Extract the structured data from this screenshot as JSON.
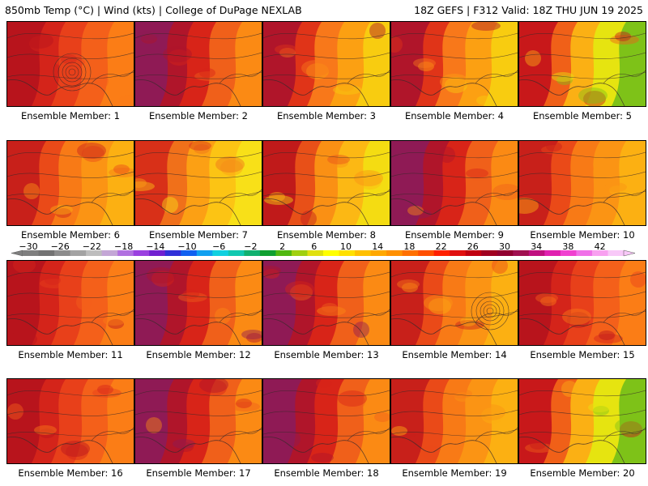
{
  "header": {
    "left": "850mb Temp (°C) | Wind (kts) | College of DuPage NEXLAB",
    "right": "18Z GEFS | F312 Valid: 18Z THU JUN 19 2025"
  },
  "caption_prefix": "Ensemble Member:",
  "members": [
    {
      "label": "Ensemble Member: 1",
      "scheme": "red-west",
      "closed_low": true
    },
    {
      "label": "Ensemble Member: 2",
      "scheme": "hot-west",
      "closed_low": false
    },
    {
      "label": "Ensemble Member: 3",
      "scheme": "yellow-east",
      "closed_low": false
    },
    {
      "label": "Ensemble Member: 4",
      "scheme": "yellow-east",
      "closed_low": false
    },
    {
      "label": "Ensemble Member: 5",
      "scheme": "green-ne",
      "closed_low": false
    },
    {
      "label": "Ensemble Member: 6",
      "scheme": "orange",
      "closed_low": false
    },
    {
      "label": "Ensemble Member: 7",
      "scheme": "yellow",
      "closed_low": false
    },
    {
      "label": "Ensemble Member: 8",
      "scheme": "orange-yel",
      "closed_low": false
    },
    {
      "label": "Ensemble Member: 9",
      "scheme": "hot-west",
      "closed_low": false
    },
    {
      "label": "Ensemble Member: 10",
      "scheme": "orange",
      "closed_low": false
    },
    {
      "label": "Ensemble Member: 11",
      "scheme": "red-west",
      "closed_low": false
    },
    {
      "label": "Ensemble Member: 12",
      "scheme": "hot-west",
      "closed_low": false
    },
    {
      "label": "Ensemble Member: 13",
      "scheme": "hot-west",
      "closed_low": false
    },
    {
      "label": "Ensemble Member: 14",
      "scheme": "orange",
      "closed_low": true
    },
    {
      "label": "Ensemble Member: 15",
      "scheme": "red-west",
      "closed_low": false
    },
    {
      "label": "Ensemble Member: 16",
      "scheme": "red-west",
      "closed_low": false
    },
    {
      "label": "Ensemble Member: 17",
      "scheme": "hot-west",
      "closed_low": false
    },
    {
      "label": "Ensemble Member: 18",
      "scheme": "hot-west",
      "closed_low": false
    },
    {
      "label": "Ensemble Member: 19",
      "scheme": "orange",
      "closed_low": false
    },
    {
      "label": "Ensemble Member: 20",
      "scheme": "green-ne",
      "closed_low": false
    }
  ],
  "colorbar": {
    "labels": [
      "−30",
      "−26",
      "−22",
      "−18",
      "−14",
      "−10",
      "−6",
      "−2",
      "2",
      "6",
      "10",
      "14",
      "18",
      "22",
      "26",
      "30",
      "34",
      "38",
      "42"
    ],
    "colors": [
      "#7f7f7f",
      "#737373",
      "#8c8c8c",
      "#a3a3a3",
      "#bdbdbd",
      "#c3a6d6",
      "#b070e0",
      "#9a40e0",
      "#7020d0",
      "#3030d8",
      "#1060f0",
      "#10a0f0",
      "#10d0e0",
      "#10c8b0",
      "#10b070",
      "#10a030",
      "#50b810",
      "#a0d010",
      "#e0e010",
      "#ffff00",
      "#ffe000",
      "#ffc000",
      "#ffa800",
      "#ff9000",
      "#ff7000",
      "#ff5000",
      "#ff2000",
      "#e01010",
      "#c00010",
      "#a00020",
      "#900030",
      "#a01050",
      "#c01080",
      "#e020b0",
      "#f040d0",
      "#f070e8",
      "#f8a0f0",
      "#f8c8f8"
    ]
  },
  "palettes": {
    "red-west": [
      "#b8141c",
      "#d4241a",
      "#e8401a",
      "#f4601a",
      "#fb7d16"
    ],
    "hot-west": [
      "#8f1a55",
      "#b0152a",
      "#d82418",
      "#f0601a",
      "#fb8a14"
    ],
    "yellow-east": [
      "#b0152a",
      "#e03418",
      "#f8781a",
      "#fca012",
      "#f8cc10"
    ],
    "green-ne": [
      "#c8181a",
      "#f06018",
      "#fbb014",
      "#e6e410",
      "#7ec218"
    ],
    "orange": [
      "#c8201a",
      "#ea4a18",
      "#f87a16",
      "#fb9414",
      "#fcb012"
    ],
    "yellow": [
      "#d83018",
      "#f0701a",
      "#fca014",
      "#fcc414",
      "#f8e018"
    ],
    "orange-yel": [
      "#c01a1a",
      "#e85018",
      "#fa9014",
      "#fcb814",
      "#f4dc12"
    ]
  }
}
